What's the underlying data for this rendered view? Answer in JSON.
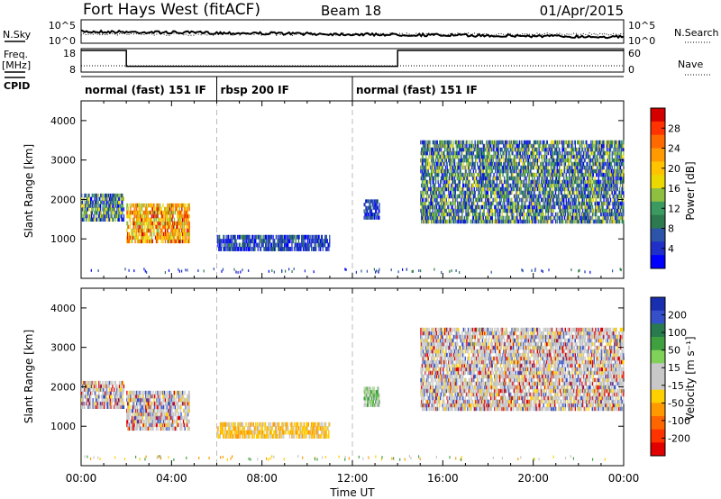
{
  "header": {
    "station": "Fort Hays West (fitACF)",
    "beam": "Beam 18",
    "date": "01/Apr/2015"
  },
  "left_labels": {
    "nsky": "N.Sky",
    "freq": "Freq.",
    "freq_unit": "[MHz]",
    "cpid": "CPID"
  },
  "right_labels": {
    "nsearch": "N.Search",
    "nave": "Nave"
  },
  "nsky_ticks": [
    "10^5",
    "10^0"
  ],
  "freq_ticks": [
    "18",
    "8"
  ],
  "nave_ticks": [
    "60",
    "0"
  ],
  "cpid_segments": [
    {
      "label": "normal (fast) 151 IF",
      "start_hr": 0,
      "end_hr": 6
    },
    {
      "label": "rbsp 200 IF",
      "start_hr": 6,
      "end_hr": 12
    },
    {
      "label": "normal (fast) 151 IF",
      "start_hr": 12,
      "end_hr": 24
    }
  ],
  "axes": {
    "ylabel": "Slant Range [km]",
    "xlabel": "Time UT"
  },
  "colors": {
    "axis": "#000000",
    "divider": "#bbbbbb"
  },
  "chart_data": [
    {
      "type": "line",
      "name": "frequency",
      "x_hours": [
        0,
        2,
        2,
        14,
        14,
        24
      ],
      "freq_mhz": [
        18,
        18,
        10,
        10,
        18,
        18
      ],
      "ylim": [
        8,
        18
      ],
      "xlim": [
        0,
        24
      ]
    },
    {
      "type": "heatmap",
      "name": "power",
      "xlim": [
        0,
        24
      ],
      "ylim": [
        0,
        4500
      ],
      "xticks": [
        "00:00",
        "04:00",
        "08:00",
        "12:00",
        "16:00",
        "20:00",
        "00:00"
      ],
      "yticks": [
        1000,
        2000,
        3000,
        4000
      ],
      "colorbar_label": "Power [dB]",
      "colorbar_ticks": [
        "28",
        "24",
        "20",
        "16",
        "12",
        "8",
        "4"
      ],
      "colorbar_colors": [
        "#d40000",
        "#ff3300",
        "#ff6a00",
        "#ff9a00",
        "#ffc300",
        "#ebd800",
        "#8fbf40",
        "#3a9a60",
        "#2d7a50",
        "#2c54a8",
        "#1f2fc8",
        "#0000ff"
      ],
      "echo_regions": [
        {
          "t0": 0.0,
          "t1": 1.9,
          "r0": 1450,
          "r1": 2150,
          "level": "medium"
        },
        {
          "t0": 2.0,
          "t1": 4.8,
          "r0": 900,
          "r1": 1900,
          "level": "high"
        },
        {
          "t0": 6.0,
          "t1": 11.0,
          "r0": 700,
          "r1": 1100,
          "level": "low"
        },
        {
          "t0": 12.5,
          "t1": 13.2,
          "r0": 1500,
          "r1": 2000,
          "level": "low"
        },
        {
          "t0": 15.0,
          "t1": 24.0,
          "r0": 1400,
          "r1": 3500,
          "level": "medium"
        }
      ]
    },
    {
      "type": "heatmap",
      "name": "velocity",
      "xlim": [
        0,
        24
      ],
      "ylim": [
        0,
        4500
      ],
      "xticks": [
        "00:00",
        "04:00",
        "08:00",
        "12:00",
        "16:00",
        "20:00",
        "00:00"
      ],
      "yticks": [
        1000,
        2000,
        3000,
        4000
      ],
      "colorbar_label": "Velocity [m s⁻¹]",
      "colorbar_ticks": [
        "200",
        "100",
        "50",
        "15",
        "-15",
        "-50",
        "-100",
        "-200"
      ],
      "colorbar_colors": [
        "#1a2fb0",
        "#3550c8",
        "#2a7a50",
        "#3fa03f",
        "#7fd15a",
        "#c8c8c8",
        "#c8c8c8",
        "#ffd000",
        "#ff9900",
        "#ff6600",
        "#ff3300",
        "#e00000"
      ],
      "echo_regions": [
        {
          "t0": 0.0,
          "t1": 1.9,
          "r0": 1450,
          "r1": 2150,
          "level": "gray"
        },
        {
          "t0": 2.0,
          "t1": 4.8,
          "r0": 900,
          "r1": 1900,
          "level": "gray"
        },
        {
          "t0": 6.0,
          "t1": 11.0,
          "r0": 700,
          "r1": 1100,
          "level": "orange"
        },
        {
          "t0": 12.5,
          "t1": 13.2,
          "r0": 1500,
          "r1": 2000,
          "level": "green"
        },
        {
          "t0": 15.0,
          "t1": 24.0,
          "r0": 1400,
          "r1": 3500,
          "level": "gray"
        }
      ]
    }
  ]
}
